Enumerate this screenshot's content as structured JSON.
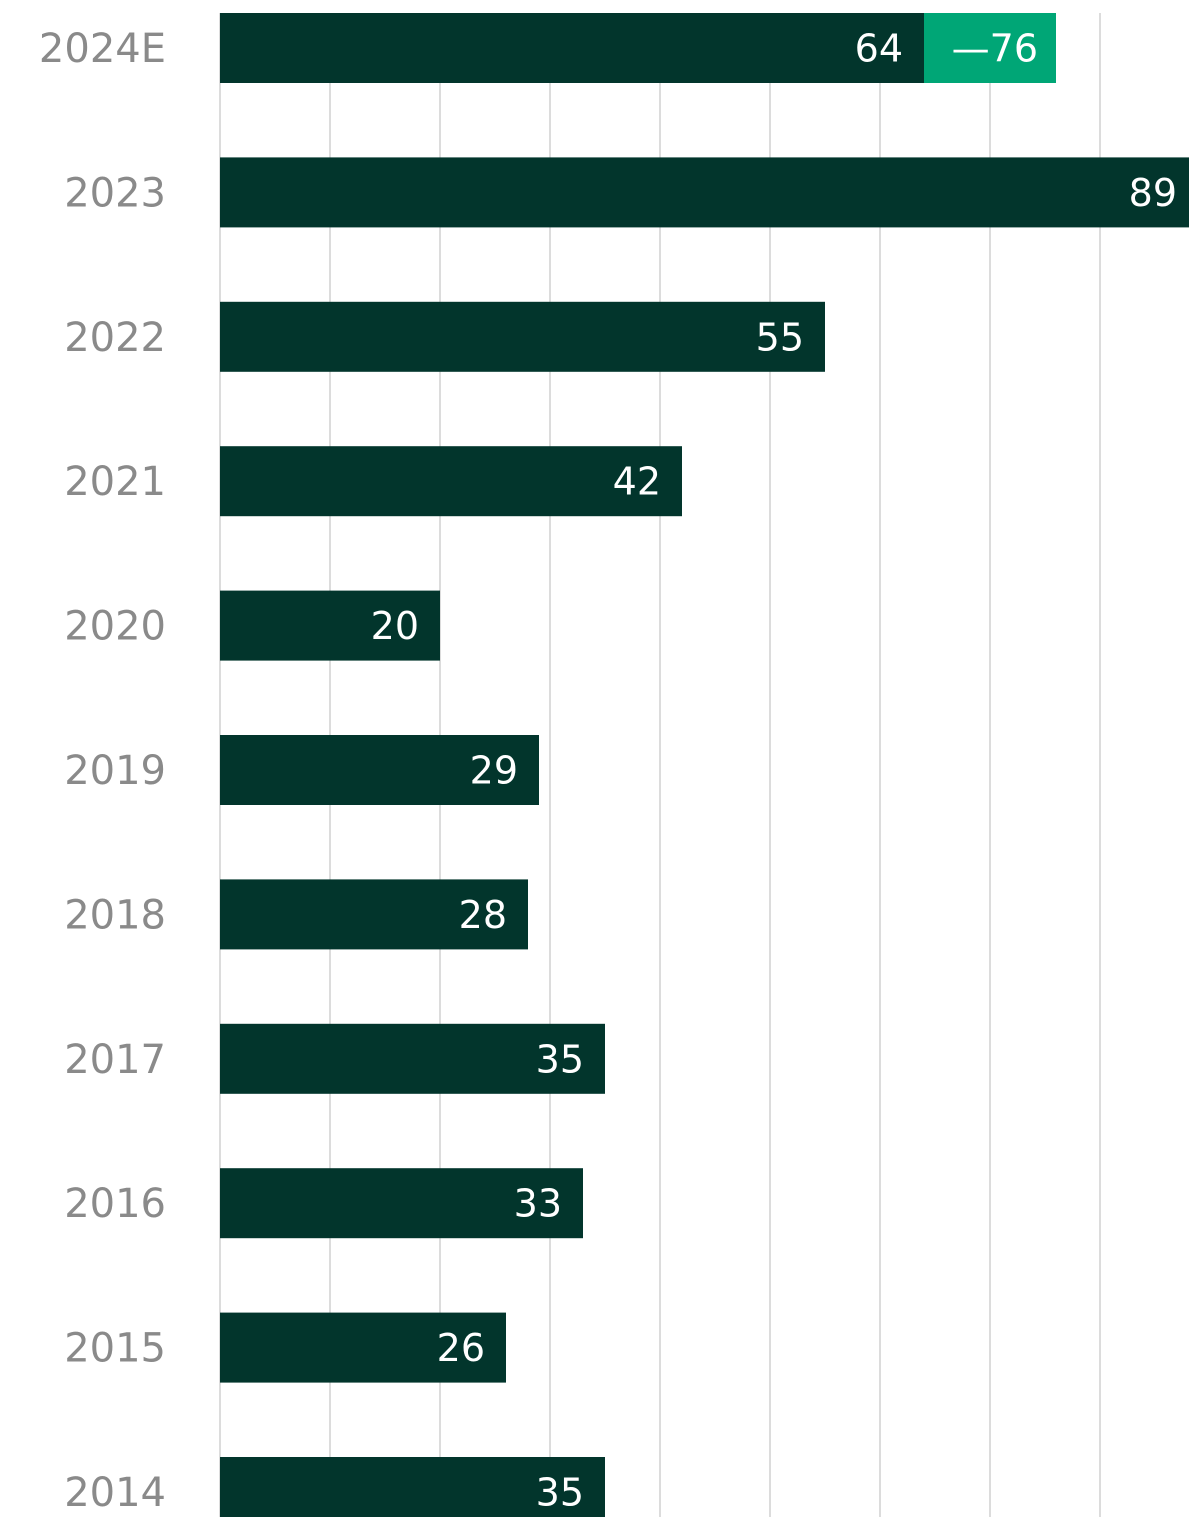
{
  "chart_data": {
    "type": "bar",
    "orientation": "horizontal",
    "categories": [
      "2024E",
      "2023",
      "2022",
      "2021",
      "2020",
      "2019",
      "2018",
      "2017",
      "2016",
      "2015",
      "2014"
    ],
    "series": [
      {
        "color": "#02352c",
        "values": [
          64,
          89,
          55,
          42,
          20,
          29,
          28,
          35,
          33,
          26,
          35
        ]
      },
      {
        "color": "#00a676",
        "values": [
          76,
          null,
          null,
          null,
          null,
          null,
          null,
          null,
          null,
          null,
          null
        ],
        "value_labels": [
          "—76",
          null,
          null,
          null,
          null,
          null,
          null,
          null,
          null,
          null,
          null
        ]
      }
    ],
    "xlim": [
      0,
      88
    ],
    "xticks": [
      0,
      10,
      20,
      30,
      40,
      50,
      60,
      70,
      80
    ],
    "grid": true
  }
}
